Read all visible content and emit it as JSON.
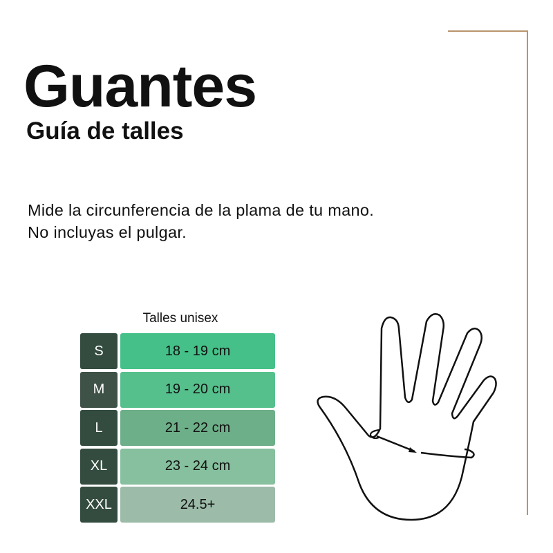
{
  "title": "Guantes",
  "subtitle": "Guía de talles",
  "description": [
    "Mide la circunferencia de la plama de tu mano.",
    "No incluyas el pulgar."
  ],
  "table": {
    "caption": "Talles unisex",
    "rows": [
      {
        "size": "S",
        "range": "18 - 19 cm",
        "size_color": "#344c40",
        "range_color": "#45c088"
      },
      {
        "size": "M",
        "range": "19 - 20 cm",
        "size_color": "#3f5248",
        "range_color": "#56c08d"
      },
      {
        "size": "L",
        "range": "21 - 22 cm",
        "size_color": "#344c40",
        "range_color": "#6daf88"
      },
      {
        "size": "XL",
        "range": "23 - 24 cm",
        "size_color": "#344c40",
        "range_color": "#86c09e"
      },
      {
        "size": "XXL",
        "range": "24.5+",
        "size_color": "#344c40",
        "range_color": "#9cbba8"
      }
    ]
  },
  "illustration": "hand-measure-icon",
  "accent_color": "#b9946c"
}
